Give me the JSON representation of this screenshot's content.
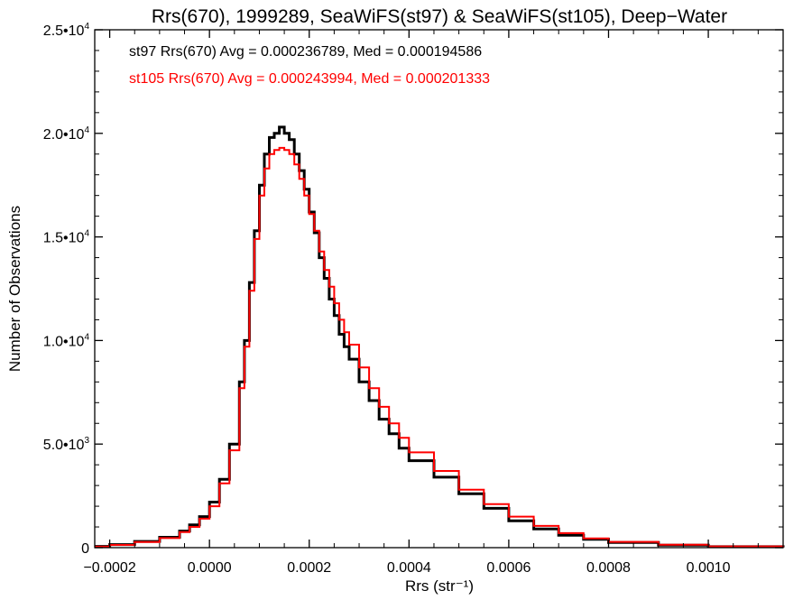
{
  "chart_data": {
    "type": "line",
    "style": "step-histogram",
    "title": "Rrs(670), 1999289, SeaWiFS(st97) & SeaWiFS(st105), Deep−Water",
    "xlabel": "Rrs (str⁻¹)",
    "ylabel": "Number of Observations",
    "xlim": [
      -0.00023,
      0.00115
    ],
    "ylim": [
      0,
      25000
    ],
    "x_ticks": [
      {
        "value": -0.0002,
        "label": "−0.0002"
      },
      {
        "value": 0.0,
        "label": "0.0000"
      },
      {
        "value": 0.0002,
        "label": "0.0002"
      },
      {
        "value": 0.0004,
        "label": "0.0004"
      },
      {
        "value": 0.0006,
        "label": "0.0006"
      },
      {
        "value": 0.0008,
        "label": "0.0008"
      },
      {
        "value": 0.001,
        "label": "0.0010"
      }
    ],
    "y_ticks": [
      {
        "value": 0,
        "label": "0",
        "exp": ""
      },
      {
        "value": 5000,
        "label": "5.0•10",
        "exp": "3"
      },
      {
        "value": 10000,
        "label": "1.0•10",
        "exp": "4"
      },
      {
        "value": 15000,
        "label": "1.5•10",
        "exp": "4"
      },
      {
        "value": 20000,
        "label": "2.0•10",
        "exp": "4"
      },
      {
        "value": 25000,
        "label": "2.5•10",
        "exp": "4"
      }
    ],
    "legend_position": "top-left",
    "series": [
      {
        "name": "st97",
        "color": "#000000",
        "legend_text": "st97 Rrs(670) Avg = 0.000236789, Med = 0.000194586",
        "x": [
          -0.00023,
          -0.0002,
          -0.00015,
          -0.0001,
          -6e-05,
          -4e-05,
          -2e-05,
          0.0,
          2e-05,
          4e-05,
          6e-05,
          7e-05,
          8e-05,
          9e-05,
          0.0001,
          0.00011,
          0.00012,
          0.00013,
          0.00014,
          0.00015,
          0.00016,
          0.00017,
          0.00018,
          0.00019,
          0.0002,
          0.00021,
          0.00022,
          0.00023,
          0.00024,
          0.00025,
          0.00026,
          0.00027,
          0.00028,
          0.0003,
          0.00032,
          0.00034,
          0.00036,
          0.00038,
          0.0004,
          0.00045,
          0.0005,
          0.00055,
          0.0006,
          0.00065,
          0.0007,
          0.00075,
          0.0008,
          0.0009,
          0.001,
          0.00115
        ],
        "y": [
          60,
          150,
          300,
          500,
          800,
          1100,
          1500,
          2200,
          3300,
          5000,
          8000,
          10000,
          12800,
          15300,
          17500,
          19000,
          19800,
          20000,
          20300,
          20000,
          19700,
          19000,
          18200,
          17300,
          16200,
          15200,
          14000,
          13000,
          12000,
          11200,
          10300,
          9700,
          9100,
          8000,
          7100,
          6200,
          5500,
          4800,
          4200,
          3400,
          2600,
          1900,
          1300,
          900,
          600,
          400,
          250,
          120,
          50,
          10
        ]
      },
      {
        "name": "st105",
        "color": "#ff0000",
        "legend_text": "st105 Rrs(670) Avg = 0.000243994, Med = 0.000201333",
        "x": [
          -0.00023,
          -0.0002,
          -0.00015,
          -0.0001,
          -6e-05,
          -4e-05,
          -2e-05,
          0.0,
          2e-05,
          4e-05,
          6e-05,
          7e-05,
          8e-05,
          9e-05,
          0.0001,
          0.00011,
          0.00012,
          0.00013,
          0.00014,
          0.00015,
          0.00016,
          0.00017,
          0.00018,
          0.00019,
          0.0002,
          0.00021,
          0.00022,
          0.00023,
          0.00024,
          0.00025,
          0.00026,
          0.00027,
          0.00028,
          0.0003,
          0.00032,
          0.00034,
          0.00036,
          0.00038,
          0.0004,
          0.00045,
          0.0005,
          0.00055,
          0.0006,
          0.00065,
          0.0007,
          0.00075,
          0.0008,
          0.0009,
          0.001,
          0.00115
        ],
        "y": [
          50,
          130,
          270,
          460,
          750,
          1000,
          1400,
          2000,
          3100,
          4700,
          7700,
          9700,
          12400,
          14900,
          17000,
          18300,
          19000,
          19200,
          19300,
          19200,
          19000,
          18500,
          17800,
          17000,
          16100,
          15300,
          14300,
          13400,
          12600,
          11800,
          11000,
          10400,
          9800,
          8700,
          7700,
          6800,
          6000,
          5300,
          4600,
          3700,
          2800,
          2100,
          1500,
          1050,
          700,
          450,
          280,
          140,
          60,
          10
        ]
      }
    ]
  }
}
